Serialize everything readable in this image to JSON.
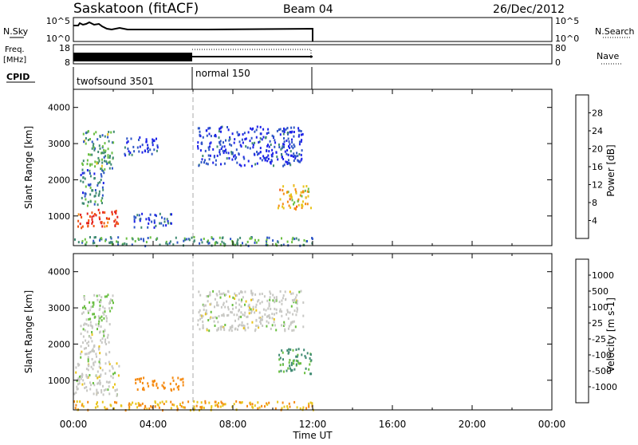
{
  "header": {
    "station": "Saskatoon (fitACF)",
    "beam": "Beam 04",
    "date": "26/Dec/2012"
  },
  "top_panels": {
    "nsky_label": "N.Sky",
    "nsky_ticks": [
      "10^5",
      "10^0"
    ],
    "nsearch_label": "N.Search",
    "nsearch_ticks": [
      "10^5",
      "10^0"
    ],
    "freq_label": "Freq.",
    "freq_unit": "[MHz]",
    "freq_ticks": [
      "18",
      "8"
    ],
    "nave_label": "Nave",
    "nave_ticks": [
      "80",
      "0"
    ],
    "cpid_label": "CPID",
    "cpid_modes": [
      "twofsound 3501",
      "normal 150"
    ]
  },
  "chart_data": [
    {
      "type": "heatmap",
      "panel": "power",
      "ylabel": "Slant Range [km]",
      "xlabel": "Time UT",
      "xlim": [
        0,
        24
      ],
      "ylim": [
        180,
        4500
      ],
      "xticks": [
        "00:00",
        "04:00",
        "08:00",
        "12:00",
        "16:00",
        "20:00",
        "00:00"
      ],
      "yticks": [
        1000,
        2000,
        3000,
        4000
      ],
      "colorbar": {
        "label": "Power [dB]",
        "ticks": [
          "4",
          "8",
          "12",
          "16",
          "20",
          "24",
          "28"
        ],
        "colors": [
          "#1d22e8",
          "#2e56c6",
          "#3f8a72",
          "#6abf42",
          "#e8c41c",
          "#f58a12",
          "#f05412",
          "#e4201a"
        ]
      },
      "regions": [
        {
          "t": [
            0.2,
            2.3
          ],
          "r": [
            700,
            1200
          ],
          "level": 28
        },
        {
          "t": [
            0.3,
            1.5
          ],
          "r": [
            1300,
            2300
          ],
          "level": 8
        },
        {
          "t": [
            0.4,
            2.0
          ],
          "r": [
            2300,
            3400
          ],
          "level": 12
        },
        {
          "t": [
            2.5,
            4.2
          ],
          "r": [
            2700,
            3200
          ],
          "level": 4
        },
        {
          "t": [
            3.0,
            5.0
          ],
          "r": [
            700,
            1100
          ],
          "level": 6
        },
        {
          "t": [
            6.2,
            11.5
          ],
          "r": [
            2400,
            3500
          ],
          "level": 4
        },
        {
          "t": [
            10.2,
            11.9
          ],
          "r": [
            1200,
            1900
          ],
          "level": 20
        },
        {
          "t": [
            0.0,
            12.0
          ],
          "r": [
            200,
            450
          ],
          "level": 10
        }
      ]
    },
    {
      "type": "heatmap",
      "panel": "velocity",
      "ylabel": "Slant Range [km]",
      "xlabel": "Time UT",
      "xlim": [
        0,
        24
      ],
      "ylim": [
        180,
        4500
      ],
      "xticks": [
        "00:00",
        "04:00",
        "08:00",
        "12:00",
        "16:00",
        "20:00",
        "00:00"
      ],
      "yticks": [
        1000,
        2000,
        3000,
        4000
      ],
      "colorbar": {
        "label": "Velocity [m s-1]",
        "ticks": [
          "1000",
          "500",
          "100",
          "25",
          "-25",
          "-100",
          "-500",
          "-1000"
        ],
        "colors": [
          "#1d22e8",
          "#2e56c6",
          "#3f8a72",
          "#6abf42",
          "#c8c8c4",
          "#e8c41c",
          "#f58a12",
          "#f05412",
          "#e4201a"
        ]
      },
      "regions": [
        {
          "t": [
            0.0,
            2.3
          ],
          "r": [
            600,
            1500
          ],
          "level": 0
        },
        {
          "t": [
            0.3,
            1.8
          ],
          "r": [
            1500,
            2600
          ],
          "level": 0
        },
        {
          "t": [
            0.4,
            2.0
          ],
          "r": [
            2600,
            3400
          ],
          "level": 25
        },
        {
          "t": [
            3.0,
            5.5
          ],
          "r": [
            750,
            1100
          ],
          "level": -200
        },
        {
          "t": [
            6.2,
            11.5
          ],
          "r": [
            2400,
            3500
          ],
          "level": 0
        },
        {
          "t": [
            10.2,
            11.9
          ],
          "r": [
            1200,
            1900
          ],
          "level": 100
        },
        {
          "t": [
            0.0,
            12.0
          ],
          "r": [
            200,
            450
          ],
          "level": -100
        }
      ]
    }
  ]
}
